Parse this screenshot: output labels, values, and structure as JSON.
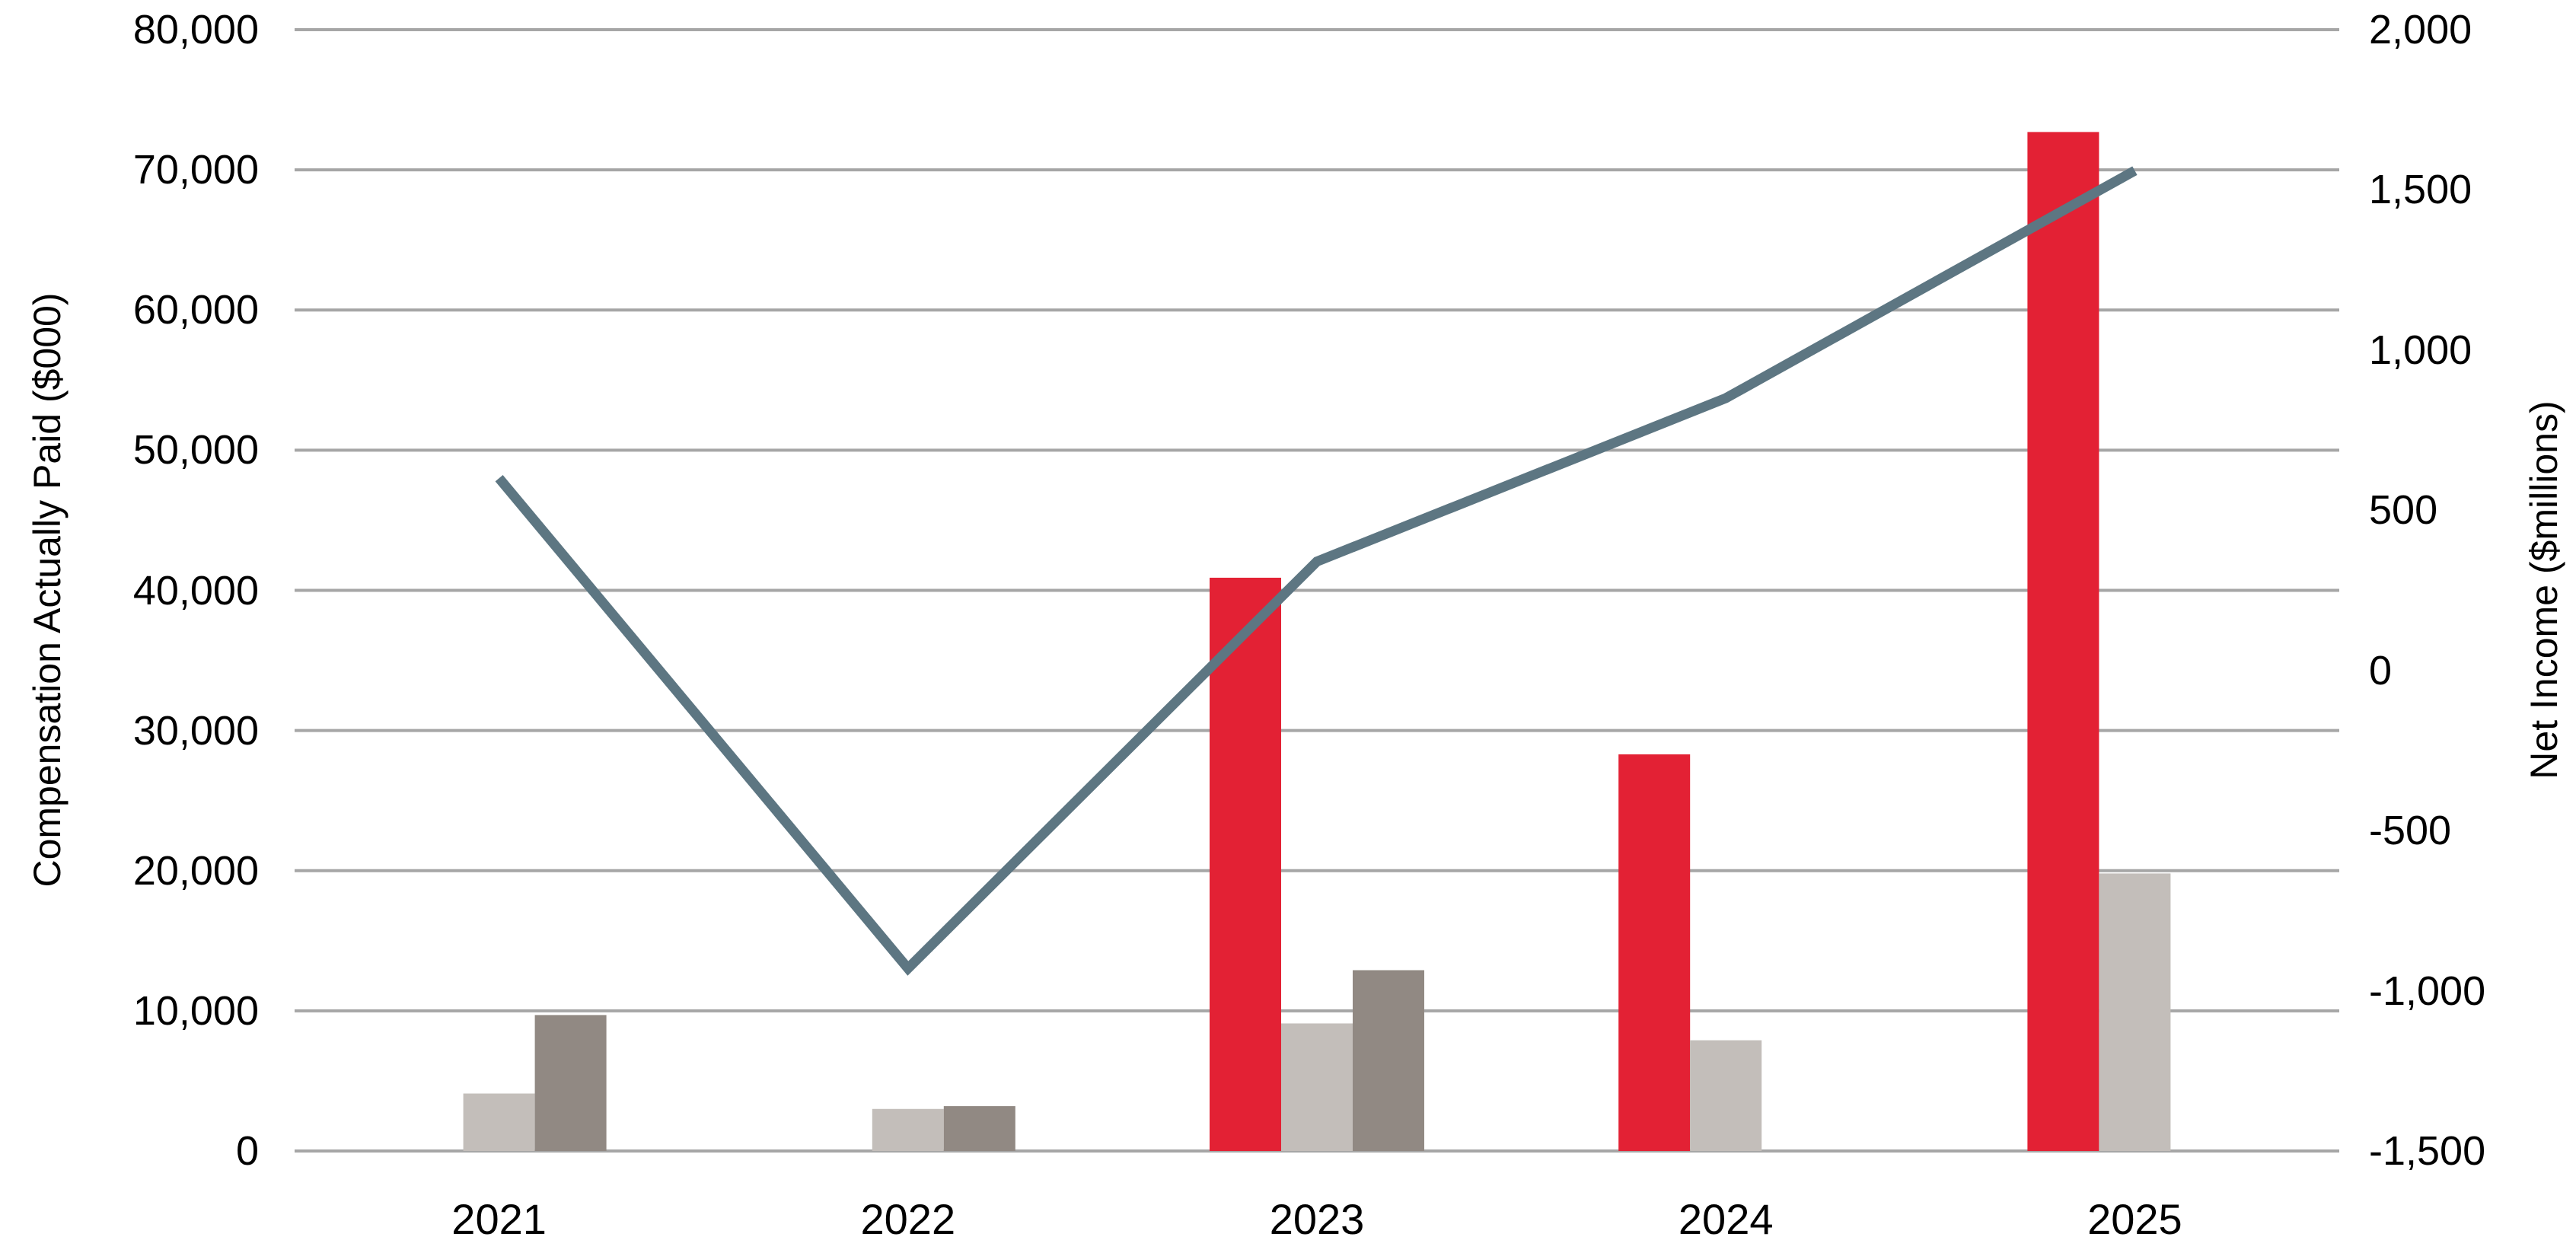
{
  "chart_data": {
    "type": "combo-bar-line",
    "title": "",
    "legend": "none",
    "background_color": "#ffffff",
    "text_color": "#000000",
    "grid": {
      "color": "#a6a6a6",
      "line_width": 4,
      "orientation": "horizontal-only"
    },
    "categories": [
      "2021",
      "2022",
      "2023",
      "2024",
      "2025"
    ],
    "bar_series": [
      {
        "name": "red-bars",
        "color": "#e32134",
        "axis": "left",
        "values": [
          null,
          null,
          40900,
          28300,
          72700
        ]
      },
      {
        "name": "light-gray-bars",
        "color": "#c3beba",
        "axis": "left",
        "values": [
          4100,
          3000,
          9100,
          7900,
          19800
        ]
      },
      {
        "name": "dark-gray-bars",
        "color": "#918983",
        "axis": "left",
        "values": [
          9700,
          3200,
          12900,
          null,
          null
        ]
      }
    ],
    "line_series": {
      "name": "slate-line",
      "color": "#5d7682",
      "axis": "right",
      "stroke_width": 13,
      "values": [
        600,
        -930,
        340,
        850,
        1560
      ]
    },
    "left_axis": {
      "label": "Compensation Actually Paid ($000)",
      "min": 0,
      "max": 80000,
      "step": 10000,
      "tick_labels_top_to_bottom": [
        "80,000",
        "70,000",
        "60,000",
        "50,000",
        "40,000",
        "30,000",
        "20,000",
        "10,000",
        "0"
      ]
    },
    "right_axis": {
      "label": "Net Income ($millions)",
      "min": -1500,
      "max": 2000,
      "step": 500,
      "tick_labels_top_to_bottom": [
        "2,000",
        "1,500",
        "1,000",
        "500",
        "0",
        "-500",
        "-1,000",
        "-1,500"
      ]
    }
  }
}
